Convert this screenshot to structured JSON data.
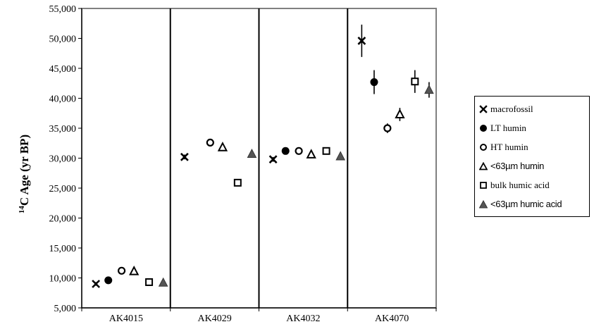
{
  "chart_data": {
    "type": "scatter",
    "ylabel_sup": "14",
    "ylabel": "C Age (yr BP)",
    "ylim": [
      5000,
      55000
    ],
    "yticks": [
      5000,
      10000,
      15000,
      20000,
      25000,
      30000,
      35000,
      40000,
      45000,
      50000,
      55000
    ],
    "ytick_labels": [
      "5,000",
      "10,000",
      "15,000",
      "20,000",
      "25,000",
      "30,000",
      "35,000",
      "40,000",
      "45,000",
      "50,000",
      "55,000"
    ],
    "categories": [
      "AK4015",
      "AK4029",
      "AK4032",
      "AK4070"
    ],
    "grid": false,
    "legend_position": "right",
    "series": [
      {
        "name": "macrofossil",
        "symbol": "x",
        "color": "#000000",
        "values": [
          9000,
          30200,
          29800,
          49600
        ],
        "errors": [
          300,
          400,
          400,
          2700
        ]
      },
      {
        "name": "LT humin",
        "symbol": "filled-circle",
        "color": "#000000",
        "values": [
          9600,
          null,
          31200,
          42700
        ],
        "errors": [
          300,
          0,
          400,
          2000
        ]
      },
      {
        "name": "HT humin",
        "symbol": "open-circle",
        "color": "#000000",
        "values": [
          11200,
          32600,
          31200,
          35000
        ],
        "errors": [
          300,
          400,
          400,
          800
        ]
      },
      {
        "name": "<63µm humin",
        "symbol": "open-triangle",
        "color": "#000000",
        "values": [
          11100,
          31800,
          30600,
          37300
        ],
        "errors": [
          300,
          400,
          400,
          1100
        ]
      },
      {
        "name": "bulk humic acid",
        "symbol": "open-square",
        "color": "#000000",
        "values": [
          9300,
          25900,
          31200,
          42800
        ],
        "errors": [
          300,
          400,
          400,
          1900
        ]
      },
      {
        "name": "<63µm humic acid",
        "symbol": "filled-triangle",
        "color": "#555555",
        "values": [
          9200,
          30700,
          30300,
          41400
        ],
        "errors": [
          300,
          400,
          400,
          1300
        ]
      }
    ]
  }
}
